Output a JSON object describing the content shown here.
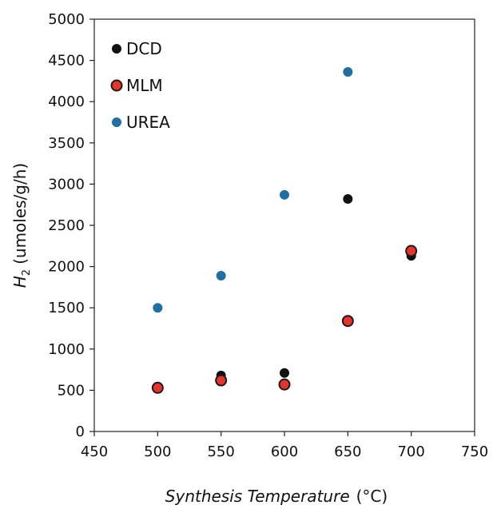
{
  "chart_data": {
    "type": "scatter",
    "xlabel": "Synthesis Temperature",
    "xlabel_unit": "(°C)",
    "ylabel_main": "H",
    "ylabel_sub": "2",
    "ylabel_unit": "(umoles/g/h)",
    "xlim": [
      450,
      750
    ],
    "ylim": [
      0,
      5000
    ],
    "xticks": [
      450,
      500,
      550,
      600,
      650,
      700,
      750
    ],
    "yticks": [
      0,
      500,
      1000,
      1500,
      2000,
      2500,
      3000,
      3500,
      4000,
      4500,
      5000
    ],
    "grid": false,
    "legend_position": "top-left",
    "series": [
      {
        "name": "DCD",
        "color": "#111111",
        "edge": "#111111",
        "x": [
          500,
          550,
          600,
          650,
          700
        ],
        "y": [
          540,
          680,
          710,
          2820,
          2130
        ]
      },
      {
        "name": "MLM",
        "color": "#e8332d",
        "edge": "#1a1a1a",
        "x": [
          500,
          550,
          600,
          650,
          700
        ],
        "y": [
          530,
          620,
          570,
          1340,
          2190
        ]
      },
      {
        "name": "UREA",
        "color": "#1f6fa3",
        "edge": "#1f6fa3",
        "x": [
          500,
          550,
          600,
          650
        ],
        "y": [
          1500,
          1890,
          2870,
          4360
        ]
      }
    ]
  }
}
